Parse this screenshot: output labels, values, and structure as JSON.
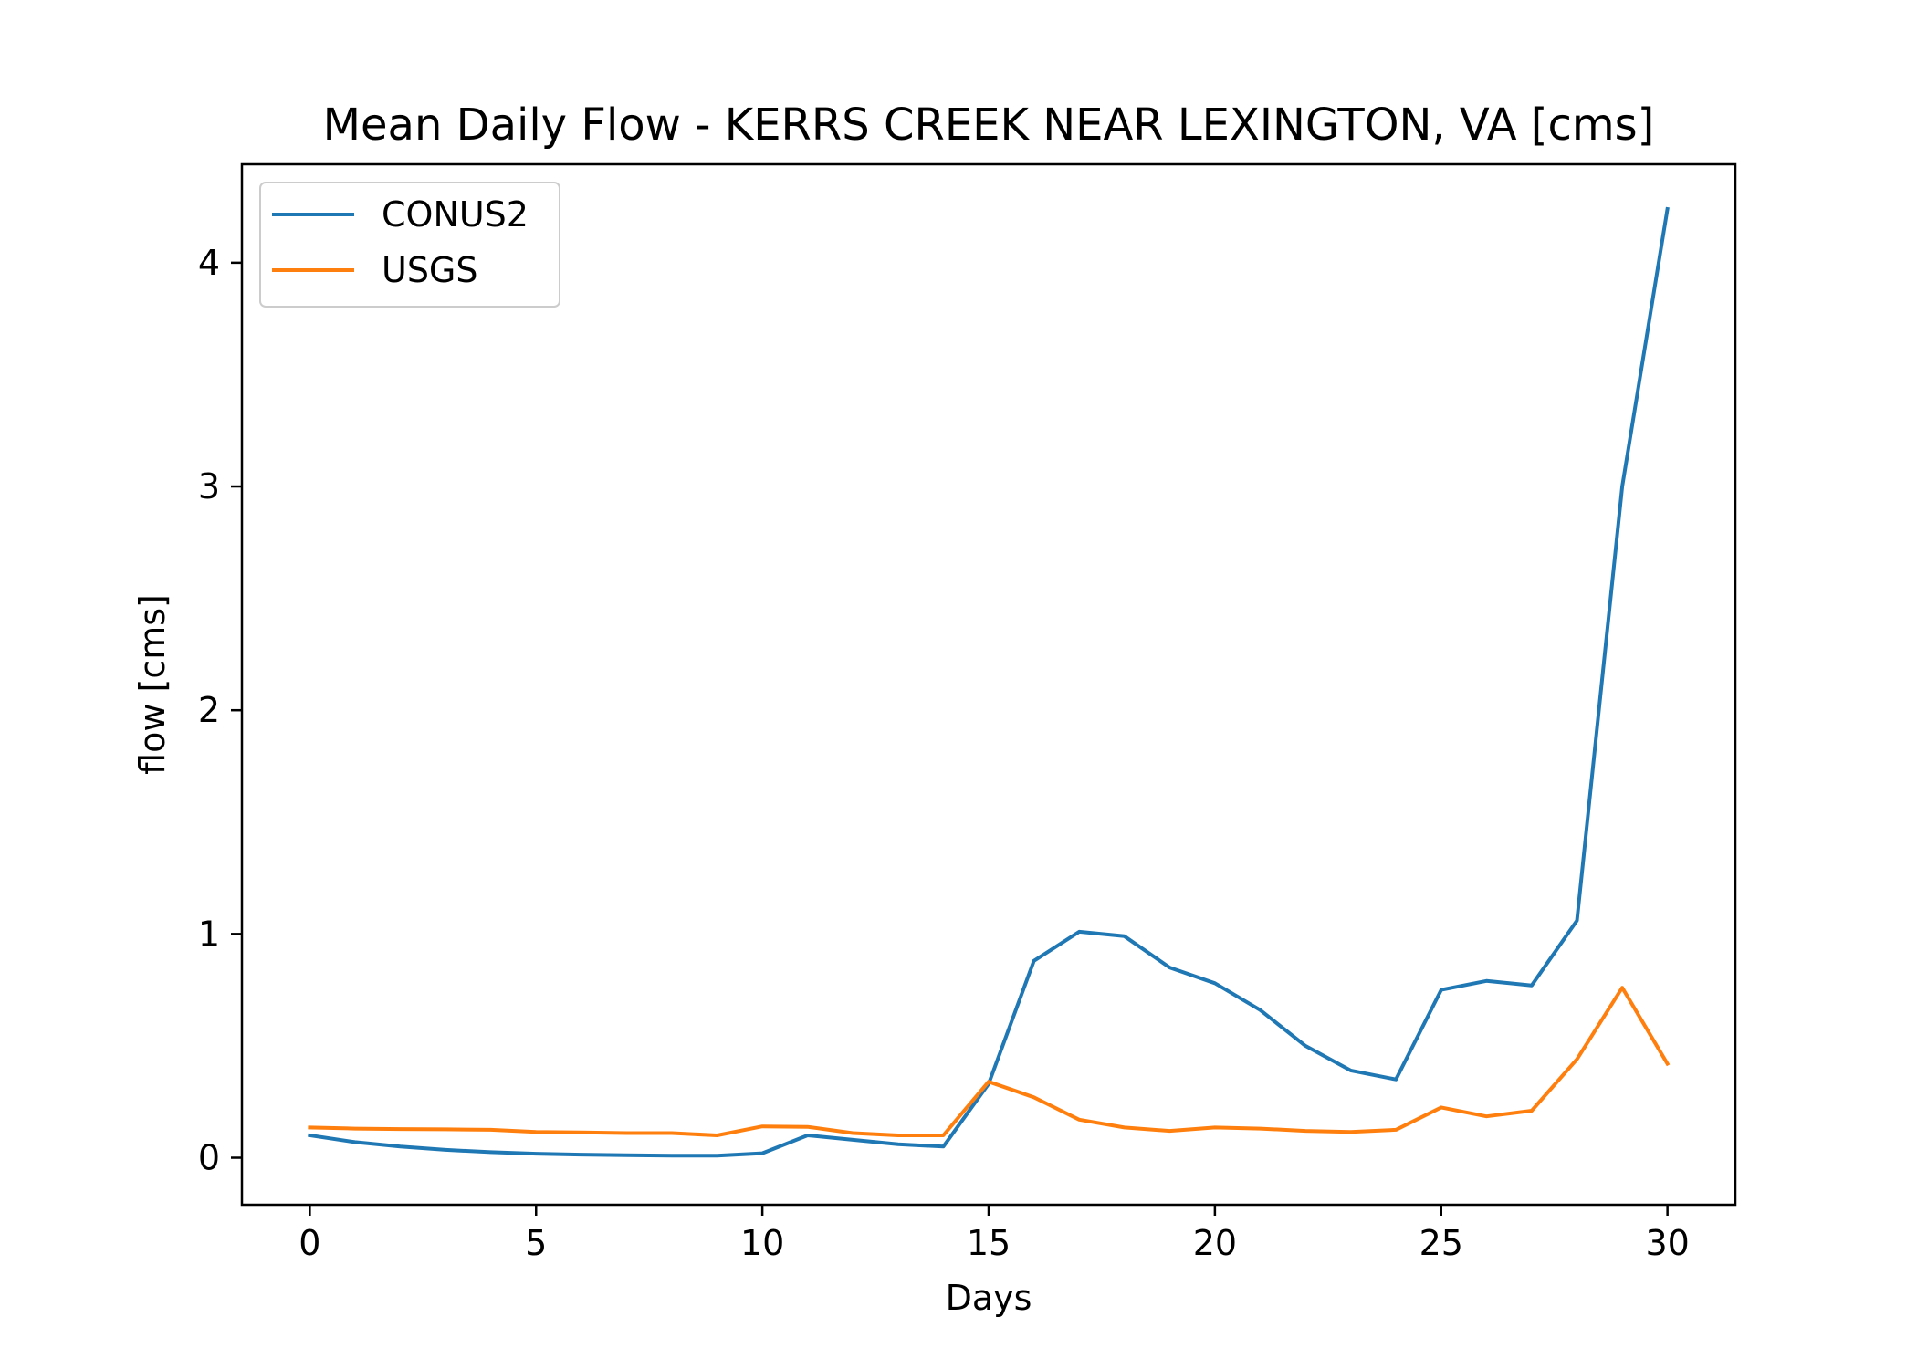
{
  "chart_data": {
    "type": "line",
    "title": "Mean Daily Flow - KERRS CREEK NEAR LEXINGTON, VA [cms]",
    "xlabel": "Days",
    "ylabel": "flow [cms]",
    "xlim": [
      -1.5,
      31.5
    ],
    "ylim": [
      -0.21,
      4.44
    ],
    "x_ticks": [
      0,
      5,
      10,
      15,
      20,
      25,
      30
    ],
    "y_ticks": [
      0,
      1,
      2,
      3,
      4
    ],
    "grid": false,
    "legend_position": "upper-left",
    "x": [
      0,
      1,
      2,
      3,
      4,
      5,
      6,
      7,
      8,
      9,
      10,
      11,
      12,
      13,
      14,
      15,
      16,
      17,
      18,
      19,
      20,
      21,
      22,
      23,
      24,
      25,
      26,
      27,
      28,
      29,
      30
    ],
    "series": [
      {
        "name": "CONUS2",
        "color": "#1f77b4",
        "values": [
          0.1,
          0.07,
          0.05,
          0.035,
          0.025,
          0.018,
          0.014,
          0.011,
          0.009,
          0.009,
          0.02,
          0.1,
          0.08,
          0.06,
          0.05,
          0.33,
          0.88,
          1.01,
          0.99,
          0.85,
          0.78,
          0.66,
          0.5,
          0.39,
          0.35,
          0.75,
          0.79,
          0.77,
          1.06,
          3.0,
          4.24
        ]
      },
      {
        "name": "USGS",
        "color": "#ff7f0e",
        "values": [
          0.135,
          0.13,
          0.128,
          0.127,
          0.125,
          0.115,
          0.113,
          0.11,
          0.11,
          0.1,
          0.14,
          0.138,
          0.11,
          0.1,
          0.1,
          0.34,
          0.27,
          0.17,
          0.135,
          0.12,
          0.135,
          0.13,
          0.12,
          0.115,
          0.125,
          0.225,
          0.185,
          0.21,
          0.44,
          0.76,
          0.42
        ]
      }
    ]
  }
}
